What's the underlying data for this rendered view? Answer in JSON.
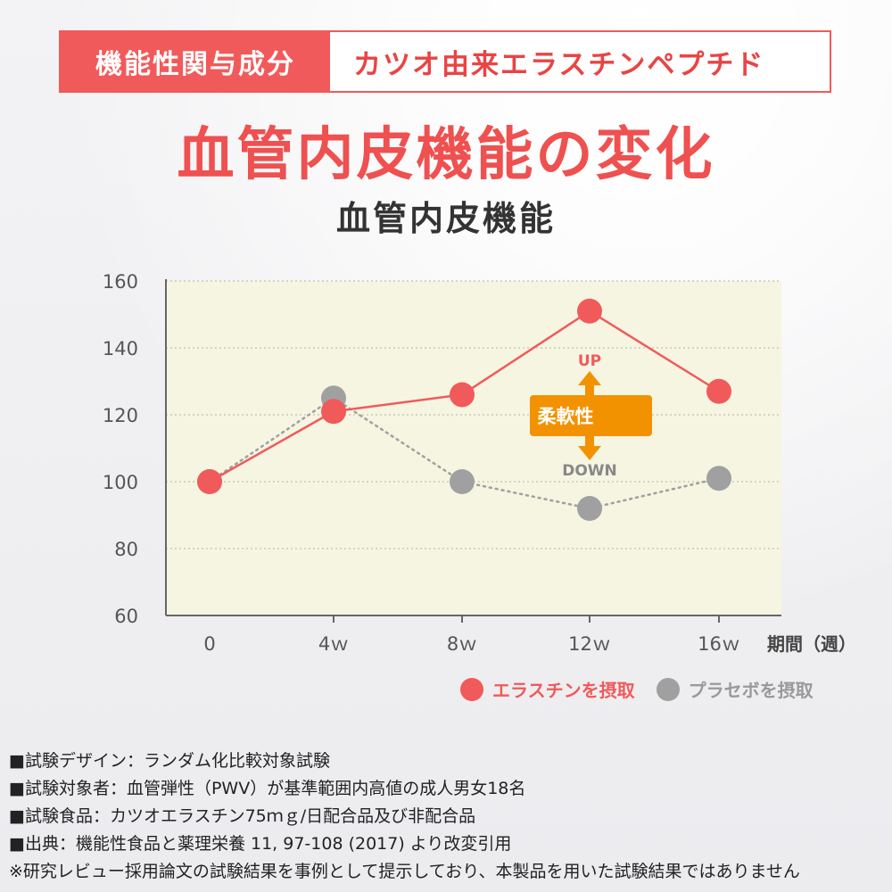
{
  "banner": {
    "label": "機能性関与成分",
    "ingredient": "カツオ由来エラスチンペプチド"
  },
  "headline": "血管内皮機能の変化",
  "colors": {
    "red": "#f15a5a",
    "gray": "#a0a0a0",
    "orange": "#f39200",
    "plot_bg": "#f5f5e2"
  },
  "chart_data": {
    "type": "line",
    "title": "血管内皮機能",
    "xlabel": "期間（週）",
    "ylabel": "",
    "categories": [
      "0",
      "4ｗ",
      "8ｗ",
      "12ｗ",
      "16ｗ"
    ],
    "ylim": [
      60,
      160
    ],
    "yticks": [
      60,
      80,
      100,
      120,
      140,
      160
    ],
    "grid": true,
    "legend_position": "bottom-right",
    "series": [
      {
        "name": "エラスチンを摂取",
        "color": "#f15a5a",
        "style": "solid",
        "values": [
          100,
          121,
          126,
          151,
          127
        ]
      },
      {
        "name": "プラセボを摂取",
        "color": "#a0a0a0",
        "style": "dotted",
        "values": [
          100,
          125,
          100,
          92,
          101
        ]
      }
    ],
    "annotation": {
      "label": "柔軟性",
      "up": "UP",
      "down": "DOWN",
      "arrow_at_category": "12ｗ",
      "arrow_from": 119,
      "arrow_to": 119
    }
  },
  "notes": [
    "■試験デザイン：ランダム化比較対象試験",
    "■試験対象者：血管弾性（PWV）が基準範囲内高値の成人男女18名",
    "■試験食品：カツオエラスチン75ｍｇ/日配合品及び非配合品",
    "■出典：機能性食品と薬理栄養 11, 97-108 (2017) より改変引用",
    "※研究レビュー採用論文の試験結果を事例として提示しており、本製品を用いた試験結果ではありません"
  ]
}
